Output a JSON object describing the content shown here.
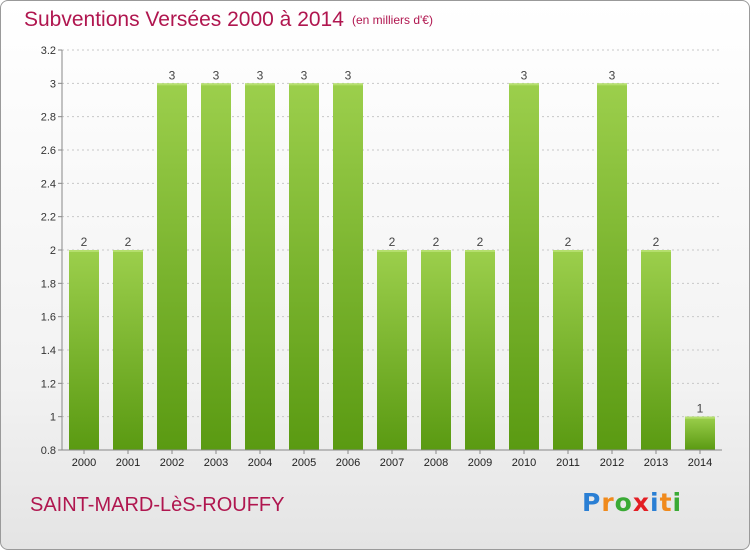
{
  "header": {
    "title": "Subventions Versées 2000 à 2014",
    "unit": "(en milliers d'€)"
  },
  "footer": {
    "commune": "SAINT-MARD-LèS-ROUFFY",
    "logo": "Proxiti"
  },
  "colors": {
    "title": "#b0164f",
    "bar_top": "#9ccf4c",
    "bar_bottom": "#5a9a12",
    "grid": "#c8c8c8",
    "axis": "#888888"
  },
  "chart_data": {
    "type": "bar",
    "categories": [
      "2000",
      "2001",
      "2002",
      "2003",
      "2004",
      "2005",
      "2006",
      "2007",
      "2008",
      "2009",
      "2010",
      "2011",
      "2012",
      "2013",
      "2014"
    ],
    "values": [
      2,
      2,
      3,
      3,
      3,
      3,
      3,
      2,
      2,
      2,
      3,
      2,
      3,
      2,
      1
    ],
    "y_positions": [
      2,
      2,
      3,
      3,
      3,
      3,
      3,
      2,
      2,
      2,
      3,
      2,
      3,
      2,
      1
    ],
    "y_tick_labels": [
      "0.8",
      "1",
      "1.2",
      "1.4",
      "1.6",
      "1.8",
      "2",
      "2.2",
      "2.4",
      "2.6",
      "2.8",
      "3",
      "3.2"
    ],
    "ylim": [
      0.8,
      3.2
    ],
    "grid": true,
    "title": "Subventions Versées 2000 à 2014",
    "xlabel": "",
    "ylabel": ""
  }
}
